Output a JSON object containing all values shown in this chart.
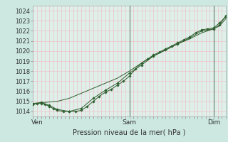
{
  "title": "Pression niveau de la mer( hPa )",
  "bg_color": "#cce8e0",
  "plot_bg_color": "#dff0eb",
  "grid_color": "#f0c0c8",
  "line_color": "#2d5e2d",
  "marker_color": "#2d5e2d",
  "ylim": [
    1013.5,
    1024.5
  ],
  "yticks": [
    1014,
    1015,
    1016,
    1017,
    1018,
    1019,
    1020,
    1021,
    1022,
    1023,
    1024
  ],
  "xlim": [
    0,
    96
  ],
  "xtick_positions": [
    2,
    48,
    90
  ],
  "xtick_labels": [
    "Ven",
    "Sam",
    "Dim"
  ],
  "vlines": [
    48,
    90
  ],
  "series1_x": [
    0,
    2,
    4,
    6,
    8,
    10,
    12,
    15,
    18,
    21,
    24,
    27,
    30,
    33,
    36,
    39,
    42,
    45,
    48,
    51,
    54,
    57,
    60,
    63,
    66,
    69,
    72,
    75,
    78,
    81,
    84,
    87,
    90,
    93,
    96
  ],
  "series1_y": [
    1014.7,
    1014.8,
    1014.8,
    1014.7,
    1014.5,
    1014.3,
    1014.1,
    1014.0,
    1014.0,
    1014.0,
    1014.1,
    1014.5,
    1015.0,
    1015.5,
    1015.9,
    1016.2,
    1016.6,
    1017.0,
    1017.5,
    1018.2,
    1018.8,
    1019.2,
    1019.6,
    1019.9,
    1020.2,
    1020.5,
    1020.8,
    1021.1,
    1021.4,
    1021.8,
    1022.1,
    1022.2,
    1022.3,
    1022.8,
    1023.4
  ],
  "series2_x": [
    0,
    4,
    8,
    12,
    18,
    24,
    30,
    36,
    42,
    48,
    54,
    60,
    66,
    72,
    78,
    84,
    90,
    93,
    96
  ],
  "series2_y": [
    1014.7,
    1014.9,
    1014.6,
    1014.2,
    1014.0,
    1014.3,
    1015.3,
    1016.1,
    1016.8,
    1017.8,
    1018.6,
    1019.5,
    1020.1,
    1020.7,
    1021.3,
    1022.0,
    1022.2,
    1022.6,
    1023.5
  ],
  "series3_x": [
    0,
    6,
    12,
    18,
    24,
    30,
    36,
    42,
    48,
    54,
    60,
    66,
    72,
    78,
    84,
    90,
    93,
    96
  ],
  "series3_y": [
    1014.8,
    1014.9,
    1015.0,
    1015.3,
    1015.8,
    1016.3,
    1016.8,
    1017.3,
    1018.0,
    1018.8,
    1019.5,
    1020.1,
    1020.7,
    1021.2,
    1021.8,
    1022.2,
    1022.5,
    1023.2
  ]
}
